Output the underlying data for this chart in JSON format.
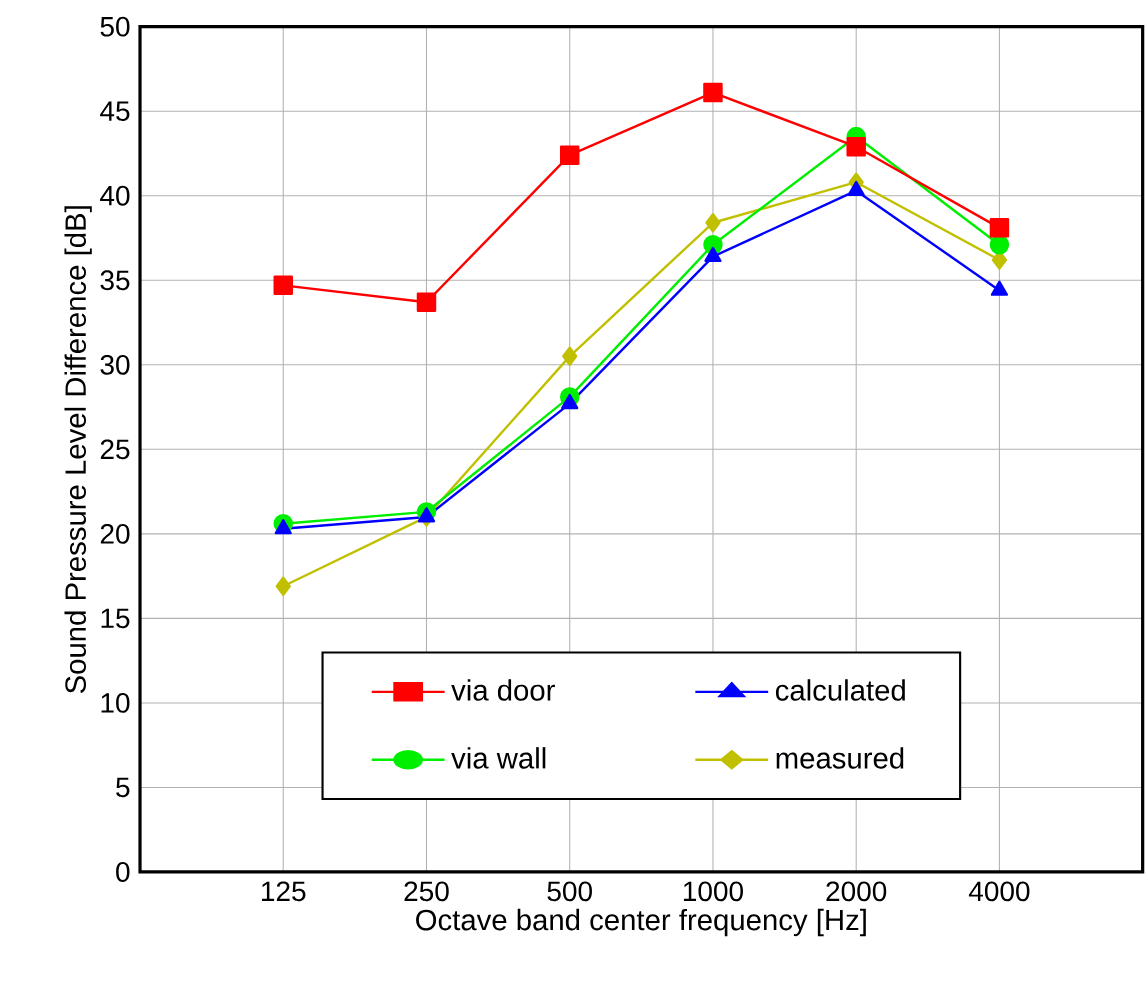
{
  "chart_data": {
    "type": "line",
    "xlabel": "Octave band center frequency [Hz]",
    "ylabel": "Sound Pressure Level Difference [dB]",
    "categories": [
      "125",
      "250",
      "500",
      "1000",
      "2000",
      "4000"
    ],
    "series": [
      {
        "name": "via door",
        "color": "#ff0000",
        "marker": "square",
        "values": [
          34.7,
          33.7,
          42.4,
          46.1,
          42.9,
          38.1
        ]
      },
      {
        "name": "calculated",
        "color": "#0000ff",
        "marker": "triangle",
        "values": [
          20.3,
          21.0,
          27.7,
          36.4,
          40.3,
          34.4
        ]
      },
      {
        "name": "via wall",
        "color": "#00ee00",
        "marker": "circle",
        "values": [
          20.6,
          21.3,
          28.1,
          37.1,
          43.5,
          37.1
        ]
      },
      {
        "name": "measured",
        "color": "#c0c000",
        "marker": "diamond",
        "values": [
          16.9,
          21.0,
          30.5,
          38.4,
          40.8,
          36.2
        ]
      }
    ],
    "ylim": [
      0,
      50
    ],
    "yticks": [
      0,
      5,
      10,
      15,
      20,
      25,
      30,
      35,
      40,
      45,
      50
    ],
    "grid": true,
    "legend": "bottom",
    "line_style": "solid"
  }
}
